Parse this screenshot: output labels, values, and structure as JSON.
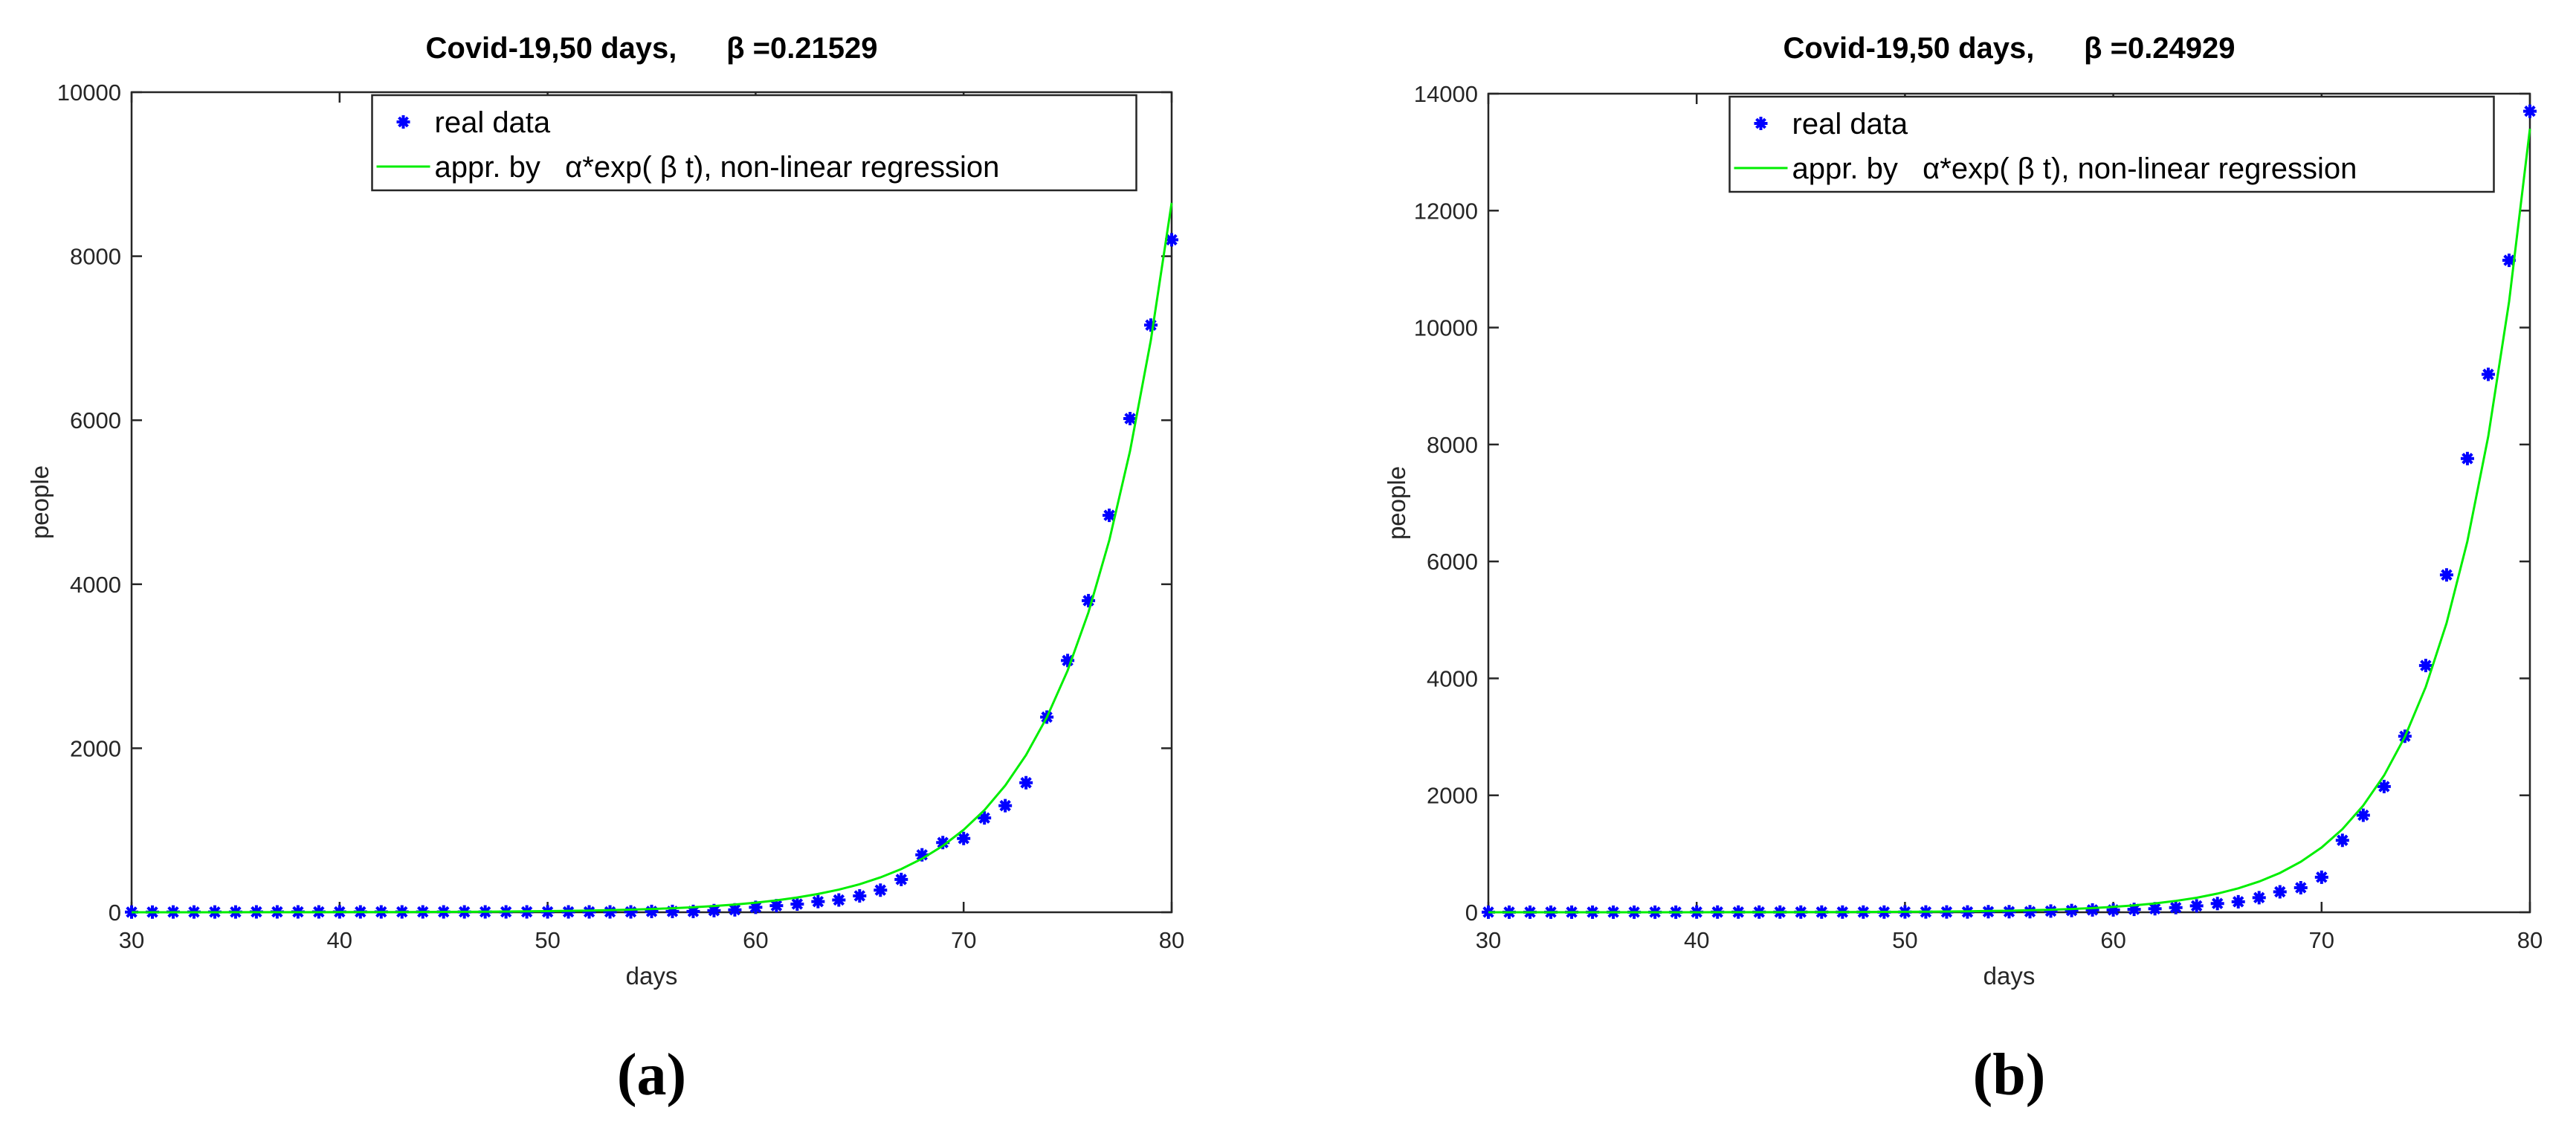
{
  "chart_data": [
    {
      "type": "scatter",
      "title": "Covid-19,50 days,      β =0.21529",
      "caption": "(a)",
      "x_label": "days",
      "y_label": "people",
      "x": [
        30,
        31,
        32,
        33,
        34,
        35,
        36,
        37,
        38,
        39,
        40,
        41,
        42,
        43,
        44,
        45,
        46,
        47,
        48,
        49,
        50,
        51,
        52,
        53,
        54,
        55,
        56,
        57,
        58,
        59,
        60,
        61,
        62,
        63,
        64,
        65,
        66,
        67,
        68,
        69,
        70,
        71,
        72,
        73,
        74,
        75,
        76,
        77,
        78,
        79,
        80
      ],
      "series": [
        {
          "name": "real data",
          "type": "scatter",
          "color": "#0000ff",
          "values": [
            2,
            2,
            3,
            3,
            3,
            3,
            5,
            5,
            5,
            5,
            5,
            5,
            5,
            5,
            5,
            5,
            5,
            5,
            5,
            5,
            5,
            5,
            5,
            5,
            5,
            10,
            10,
            10,
            20,
            30,
            60,
            80,
            100,
            130,
            150,
            200,
            270,
            400,
            700,
            850,
            900,
            1150,
            1300,
            1580,
            2380,
            3070,
            3800,
            4840,
            6020,
            7160,
            8200
          ]
        },
        {
          "name": "appr. by   α*exp( β t), non-linear regression",
          "type": "line",
          "color": "#00ee00",
          "values": [
            0.2,
            0.2,
            0.3,
            0.3,
            0.4,
            0.5,
            0.7,
            0.8,
            1,
            1.3,
            1.6,
            2,
            2.4,
            3,
            3.8,
            4.7,
            5.8,
            7.2,
            8.9,
            11,
            13.6,
            17,
            21,
            26,
            32,
            40,
            49,
            61,
            76,
            94,
            117,
            145,
            180,
            223,
            276,
            342,
            425,
            527,
            653,
            810,
            1005,
            1246,
            1546,
            1917,
            2377,
            2948,
            3657,
            4535,
            5624,
            6975,
            8650
          ]
        }
      ],
      "xlim": [
        30,
        80
      ],
      "xticks": [
        30,
        40,
        50,
        60,
        70,
        80
      ],
      "ylim": [
        0,
        10000
      ],
      "yticks": [
        0,
        2000,
        4000,
        6000,
        8000,
        10000
      ],
      "legend": "north"
    },
    {
      "type": "scatter",
      "title": "Covid-19,50 days,      β =0.24929",
      "caption": "(b)",
      "x_label": "days",
      "y_label": "people",
      "x": [
        30,
        31,
        32,
        33,
        34,
        35,
        36,
        37,
        38,
        39,
        40,
        41,
        42,
        43,
        44,
        45,
        46,
        47,
        48,
        49,
        50,
        51,
        52,
        53,
        54,
        55,
        56,
        57,
        58,
        59,
        60,
        61,
        62,
        63,
        64,
        65,
        66,
        67,
        68,
        69,
        70,
        71,
        72,
        73,
        74,
        75,
        76,
        77,
        78,
        79,
        80
      ],
      "series": [
        {
          "name": "real data",
          "type": "scatter",
          "color": "#0000ff",
          "values": [
            2,
            2,
            2,
            2,
            2,
            2,
            2,
            2,
            2,
            2,
            3,
            3,
            3,
            3,
            3,
            3,
            3,
            3,
            3,
            3,
            5,
            5,
            5,
            5,
            10,
            10,
            10,
            20,
            30,
            40,
            40,
            50,
            60,
            80,
            110,
            150,
            180,
            250,
            350,
            420,
            600,
            1230,
            1660,
            2150,
            3010,
            4220,
            5770,
            7760,
            9200,
            11150,
            13700
          ]
        },
        {
          "name": "appr. by   α*exp( β t), non-linear regression",
          "type": "line",
          "color": "#00ee00",
          "values": [
            0,
            0,
            0.1,
            0.1,
            0.1,
            0.1,
            0.2,
            0.2,
            0.3,
            0.4,
            0.6,
            0.8,
            1,
            1.3,
            1.7,
            2.2,
            2.8,
            3.6,
            4.6,
            5.9,
            7.6,
            9.7,
            12.5,
            16,
            21,
            26,
            34,
            43,
            56,
            71,
            92,
            118,
            151,
            194,
            248,
            319,
            409,
            525,
            673,
            864,
            1108,
            1422,
            1825,
            2341,
            3004,
            3854,
            4945,
            6344,
            8140,
            10444,
            13400
          ]
        }
      ],
      "xlim": [
        30,
        80
      ],
      "xticks": [
        30,
        40,
        50,
        60,
        70,
        80
      ],
      "ylim": [
        0,
        14000
      ],
      "yticks": [
        0,
        2000,
        4000,
        6000,
        8000,
        10000,
        12000,
        14000
      ],
      "legend": "north"
    }
  ]
}
